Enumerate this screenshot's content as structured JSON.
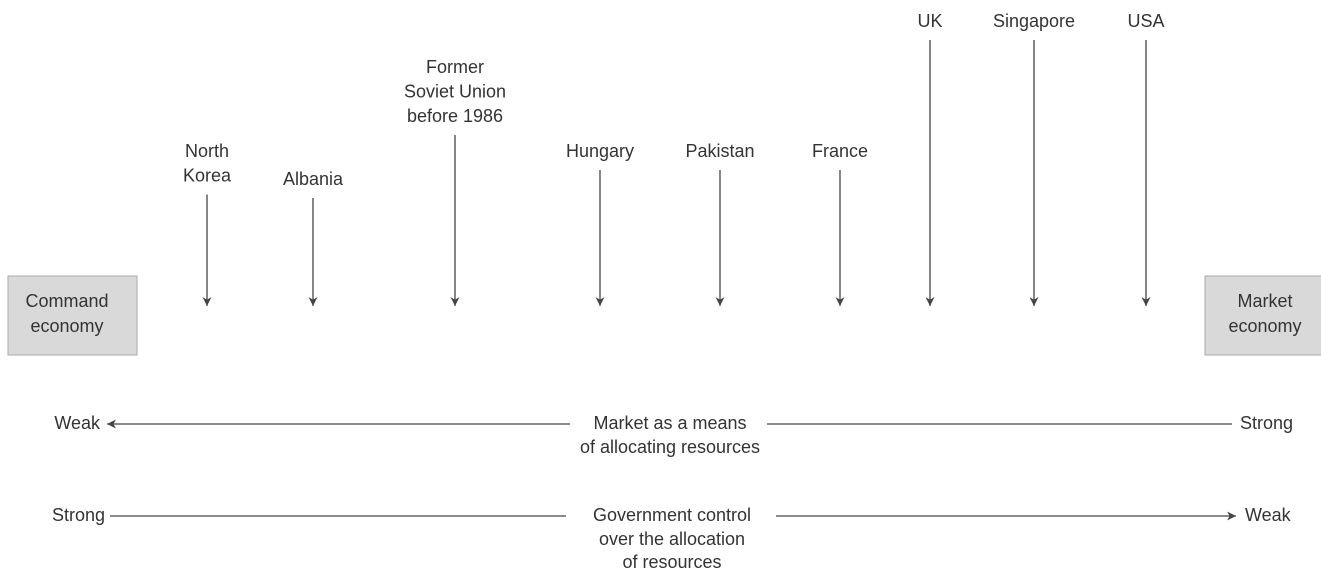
{
  "endpoints": {
    "left": {
      "lines": [
        "Command",
        "economy"
      ]
    },
    "right": {
      "lines": [
        "Market",
        "economy"
      ]
    }
  },
  "countries": [
    {
      "lines": [
        "North",
        "Korea"
      ]
    },
    {
      "lines": [
        "Albania"
      ]
    },
    {
      "lines": [
        "Former",
        "Soviet Union",
        "before 1986"
      ]
    },
    {
      "lines": [
        "Hungary"
      ]
    },
    {
      "lines": [
        "Pakistan"
      ]
    },
    {
      "lines": [
        "France"
      ]
    },
    {
      "lines": [
        "UK"
      ]
    },
    {
      "lines": [
        "Singapore"
      ]
    },
    {
      "lines": [
        "USA"
      ]
    }
  ],
  "scales": [
    {
      "left": "Weak",
      "center": [
        "Market as a means",
        "of allocating resources"
      ],
      "right": "Strong"
    },
    {
      "left": "Strong",
      "center": [
        "Government control",
        "over the allocation",
        "of resources"
      ],
      "right": "Weak"
    }
  ]
}
